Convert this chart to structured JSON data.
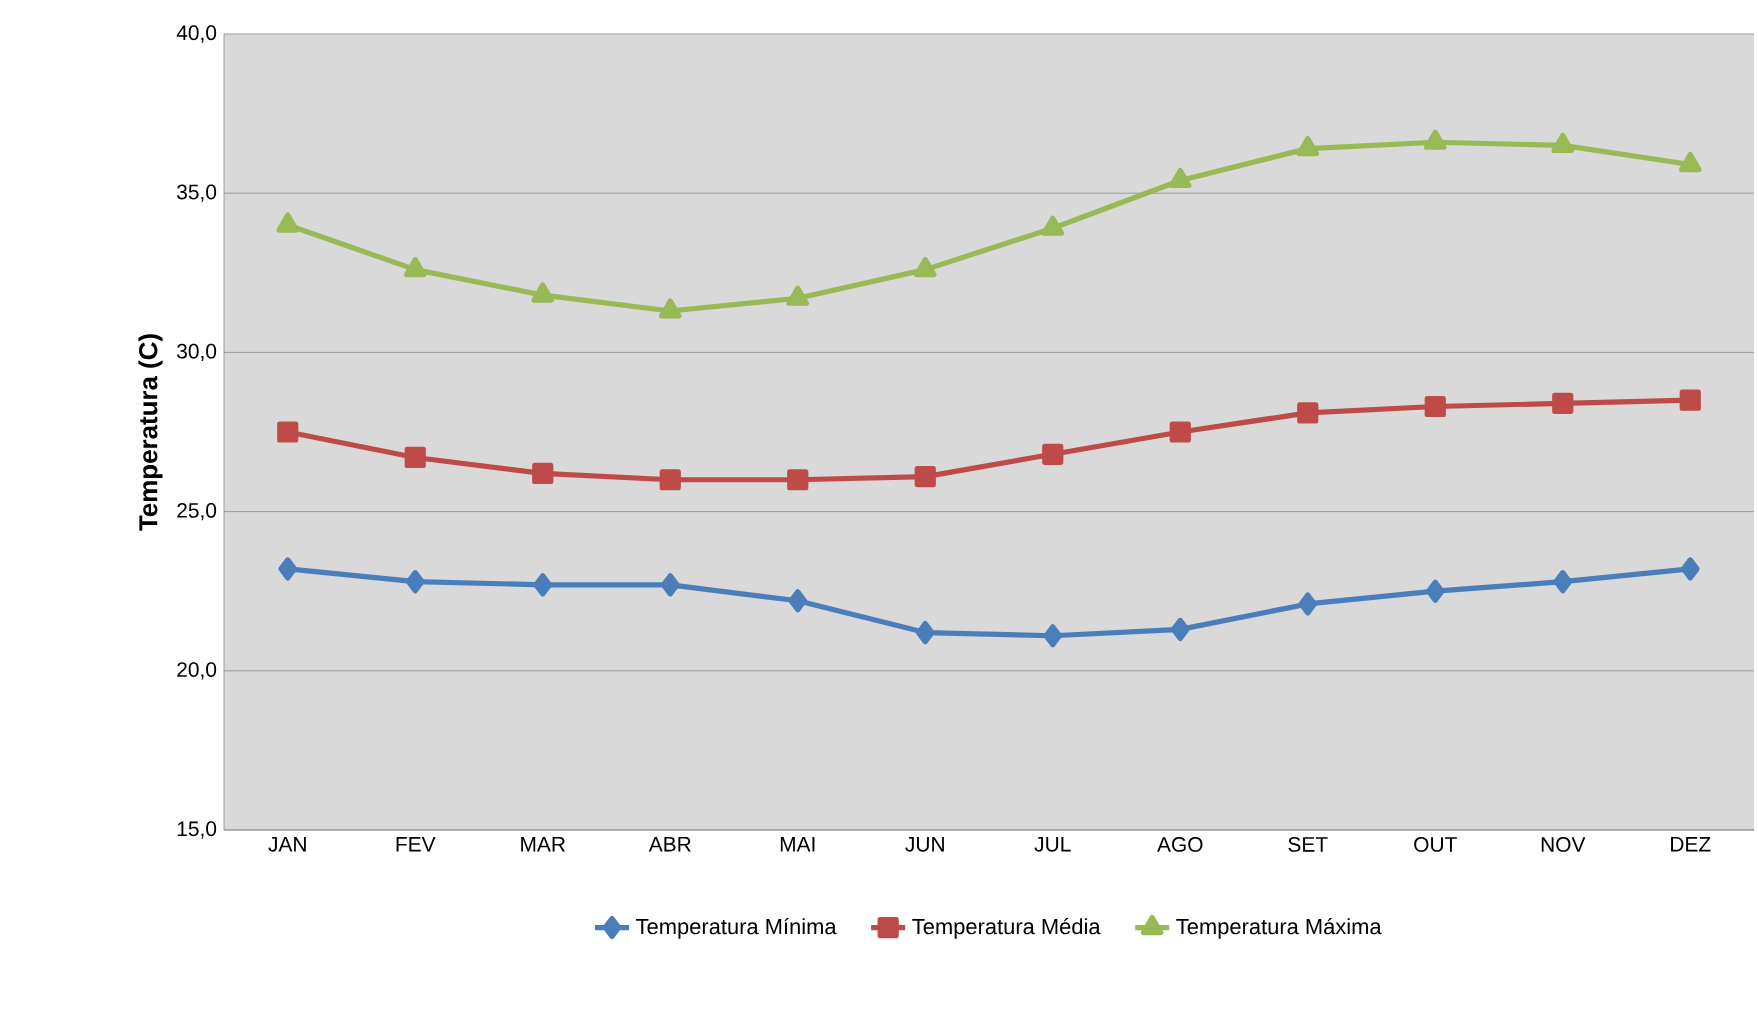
{
  "chart_data": {
    "type": "line",
    "ylabel": "Temperatura (C)",
    "categories": [
      "JAN",
      "FEV",
      "MAR",
      "ABR",
      "MAI",
      "JUN",
      "JUL",
      "AGO",
      "SET",
      "OUT",
      "NOV",
      "DEZ"
    ],
    "series": [
      {
        "name": "Temperatura Mínima",
        "color": "#4a7ebb",
        "marker": "diamond",
        "values": [
          23.2,
          22.8,
          22.7,
          22.7,
          22.2,
          21.2,
          21.1,
          21.3,
          22.1,
          22.5,
          22.8,
          23.2
        ]
      },
      {
        "name": "Temperatura Média",
        "color": "#be4b48",
        "marker": "square",
        "values": [
          27.5,
          26.7,
          26.2,
          26.0,
          26.0,
          26.1,
          26.8,
          27.5,
          28.1,
          28.3,
          28.4,
          28.5
        ]
      },
      {
        "name": "Temperatura Máxima",
        "color": "#98b954",
        "marker": "triangle",
        "values": [
          34.0,
          32.6,
          31.8,
          31.3,
          31.7,
          32.6,
          33.9,
          35.4,
          36.4,
          36.6,
          36.5,
          35.9
        ]
      }
    ],
    "ylim": [
      15,
      40
    ],
    "yticks": [
      {
        "value": 15,
        "label": "15,0"
      },
      {
        "value": 20,
        "label": "20,0"
      },
      {
        "value": 25,
        "label": "25,0"
      },
      {
        "value": 30,
        "label": "30,0"
      },
      {
        "value": 35,
        "label": "35,0"
      },
      {
        "value": 40,
        "label": "40,0"
      }
    ],
    "grid": "y",
    "legend": "bottom",
    "line_style": "solid"
  }
}
